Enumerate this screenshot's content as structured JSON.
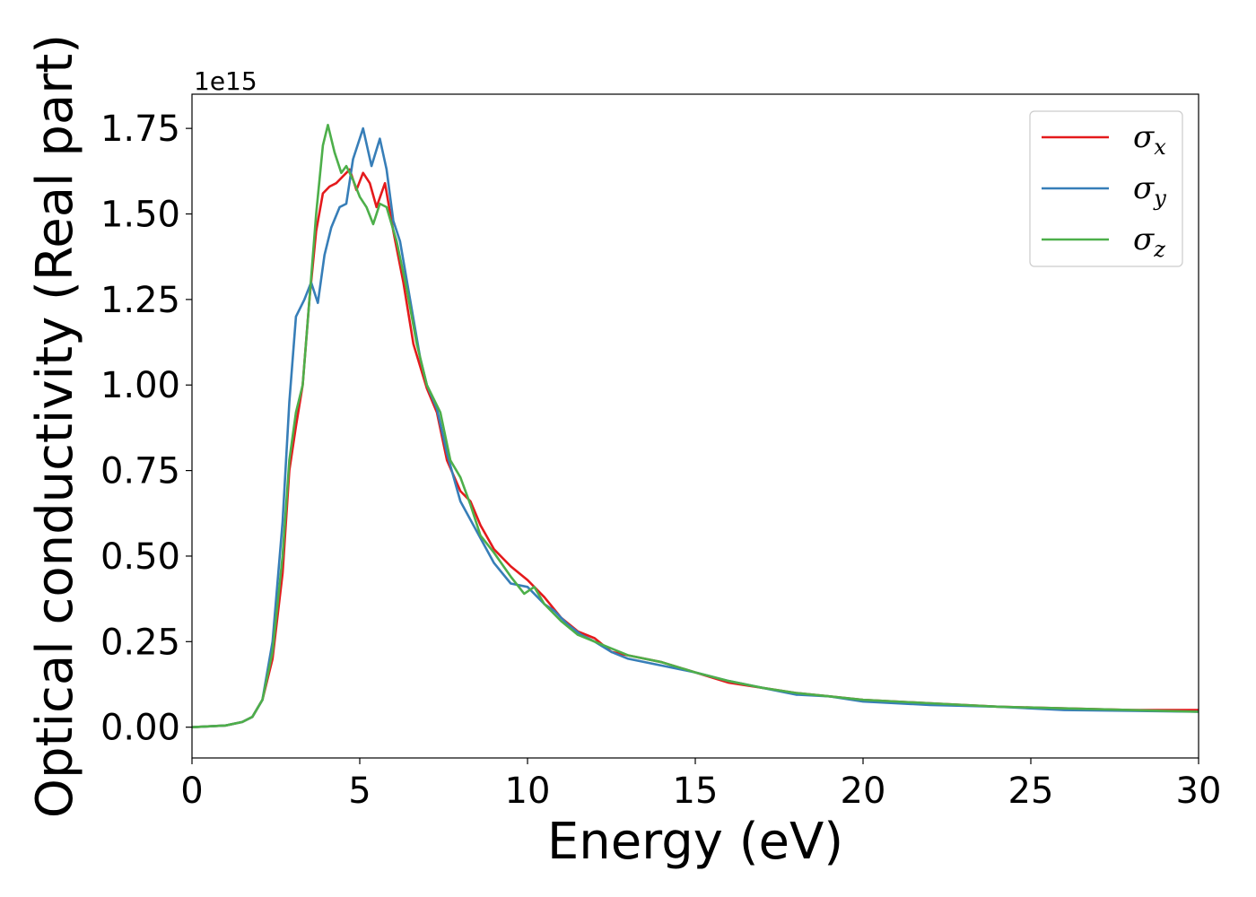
{
  "chart_data": {
    "type": "line",
    "title": "",
    "xlabel": "Energy (eV)",
    "ylabel": "Optical conductivity (Real part)",
    "y_offset_text": "1e15",
    "y_multiplier": 1000000000000000.0,
    "xlim": [
      0,
      30
    ],
    "ylim": [
      -0.09,
      1.85
    ],
    "x_ticks": [
      0,
      5,
      10,
      15,
      20,
      25,
      30
    ],
    "x_tick_labels": [
      "0",
      "5",
      "10",
      "15",
      "20",
      "25",
      "30"
    ],
    "y_ticks": [
      0.0,
      0.25,
      0.5,
      0.75,
      1.0,
      1.25,
      1.5,
      1.75
    ],
    "y_tick_labels": [
      "0.00",
      "0.25",
      "0.50",
      "0.75",
      "1.00",
      "1.25",
      "1.50",
      "1.75"
    ],
    "grid": false,
    "legend_position": "top-right",
    "series": [
      {
        "name": "σx",
        "legend_symbol": "σ",
        "legend_subscript": "x",
        "color": "#e41a1c",
        "points": [
          [
            0,
            0
          ],
          [
            1,
            0.005
          ],
          [
            1.5,
            0.015
          ],
          [
            1.8,
            0.03
          ],
          [
            2.1,
            0.08
          ],
          [
            2.4,
            0.2
          ],
          [
            2.7,
            0.45
          ],
          [
            2.9,
            0.75
          ],
          [
            3.1,
            0.88
          ],
          [
            3.3,
            1.0
          ],
          [
            3.5,
            1.25
          ],
          [
            3.7,
            1.45
          ],
          [
            3.9,
            1.56
          ],
          [
            4.1,
            1.58
          ],
          [
            4.3,
            1.59
          ],
          [
            4.5,
            1.61
          ],
          [
            4.7,
            1.63
          ],
          [
            4.9,
            1.57
          ],
          [
            5.1,
            1.62
          ],
          [
            5.3,
            1.59
          ],
          [
            5.5,
            1.52
          ],
          [
            5.75,
            1.59
          ],
          [
            6.0,
            1.45
          ],
          [
            6.3,
            1.3
          ],
          [
            6.6,
            1.12
          ],
          [
            7.0,
            0.99
          ],
          [
            7.3,
            0.92
          ],
          [
            7.6,
            0.78
          ],
          [
            8.0,
            0.69
          ],
          [
            8.3,
            0.66
          ],
          [
            8.6,
            0.59
          ],
          [
            9.0,
            0.52
          ],
          [
            9.5,
            0.47
          ],
          [
            10.0,
            0.43
          ],
          [
            10.5,
            0.38
          ],
          [
            11.0,
            0.32
          ],
          [
            11.5,
            0.28
          ],
          [
            12.0,
            0.26
          ],
          [
            12.5,
            0.22
          ],
          [
            13.0,
            0.21
          ],
          [
            14.0,
            0.19
          ],
          [
            15.0,
            0.16
          ],
          [
            16.0,
            0.13
          ],
          [
            17.0,
            0.115
          ],
          [
            18.0,
            0.1
          ],
          [
            19.0,
            0.09
          ],
          [
            20.0,
            0.08
          ],
          [
            22.0,
            0.07
          ],
          [
            24.0,
            0.06
          ],
          [
            26.0,
            0.055
          ],
          [
            28.0,
            0.05
          ],
          [
            30.0,
            0.05
          ]
        ]
      },
      {
        "name": "σy",
        "legend_symbol": "σ",
        "legend_subscript": "y",
        "color": "#377eb8",
        "points": [
          [
            0,
            0
          ],
          [
            1,
            0.005
          ],
          [
            1.5,
            0.015
          ],
          [
            1.8,
            0.03
          ],
          [
            2.1,
            0.08
          ],
          [
            2.4,
            0.25
          ],
          [
            2.7,
            0.6
          ],
          [
            2.9,
            0.95
          ],
          [
            3.1,
            1.2
          ],
          [
            3.35,
            1.25
          ],
          [
            3.55,
            1.3
          ],
          [
            3.75,
            1.24
          ],
          [
            3.95,
            1.38
          ],
          [
            4.15,
            1.46
          ],
          [
            4.4,
            1.52
          ],
          [
            4.6,
            1.53
          ],
          [
            4.8,
            1.66
          ],
          [
            5.1,
            1.75
          ],
          [
            5.35,
            1.64
          ],
          [
            5.6,
            1.72
          ],
          [
            5.8,
            1.63
          ],
          [
            6.0,
            1.48
          ],
          [
            6.2,
            1.42
          ],
          [
            6.5,
            1.25
          ],
          [
            6.8,
            1.08
          ],
          [
            7.0,
            1.0
          ],
          [
            7.3,
            0.93
          ],
          [
            7.6,
            0.8
          ],
          [
            8.0,
            0.66
          ],
          [
            8.5,
            0.57
          ],
          [
            9.0,
            0.48
          ],
          [
            9.5,
            0.42
          ],
          [
            10.0,
            0.41
          ],
          [
            10.5,
            0.36
          ],
          [
            10.8,
            0.34
          ],
          [
            11.2,
            0.3
          ],
          [
            11.6,
            0.27
          ],
          [
            12.0,
            0.25
          ],
          [
            12.5,
            0.22
          ],
          [
            13.0,
            0.2
          ],
          [
            14.0,
            0.18
          ],
          [
            15.0,
            0.16
          ],
          [
            16.0,
            0.135
          ],
          [
            17.0,
            0.115
          ],
          [
            18.0,
            0.095
          ],
          [
            19.0,
            0.09
          ],
          [
            20.0,
            0.075
          ],
          [
            22.0,
            0.065
          ],
          [
            24.0,
            0.06
          ],
          [
            26.0,
            0.05
          ],
          [
            28.0,
            0.048
          ],
          [
            30.0,
            0.045
          ]
        ]
      },
      {
        "name": "σz",
        "legend_symbol": "σ",
        "legend_subscript": "z",
        "color": "#4daf4a",
        "points": [
          [
            0,
            0
          ],
          [
            1,
            0.005
          ],
          [
            1.5,
            0.015
          ],
          [
            1.8,
            0.03
          ],
          [
            2.1,
            0.08
          ],
          [
            2.4,
            0.22
          ],
          [
            2.7,
            0.5
          ],
          [
            2.9,
            0.78
          ],
          [
            3.1,
            0.92
          ],
          [
            3.3,
            1.0
          ],
          [
            3.5,
            1.25
          ],
          [
            3.7,
            1.5
          ],
          [
            3.9,
            1.7
          ],
          [
            4.05,
            1.76
          ],
          [
            4.25,
            1.68
          ],
          [
            4.45,
            1.62
          ],
          [
            4.6,
            1.64
          ],
          [
            4.8,
            1.6
          ],
          [
            5.0,
            1.55
          ],
          [
            5.2,
            1.52
          ],
          [
            5.4,
            1.47
          ],
          [
            5.6,
            1.53
          ],
          [
            5.8,
            1.52
          ],
          [
            6.1,
            1.42
          ],
          [
            6.4,
            1.28
          ],
          [
            6.7,
            1.12
          ],
          [
            7.0,
            1.0
          ],
          [
            7.4,
            0.92
          ],
          [
            7.7,
            0.78
          ],
          [
            8.0,
            0.73
          ],
          [
            8.3,
            0.65
          ],
          [
            8.6,
            0.56
          ],
          [
            9.0,
            0.51
          ],
          [
            9.5,
            0.44
          ],
          [
            9.9,
            0.39
          ],
          [
            10.2,
            0.41
          ],
          [
            10.5,
            0.36
          ],
          [
            11.0,
            0.31
          ],
          [
            11.5,
            0.27
          ],
          [
            12.0,
            0.25
          ],
          [
            12.5,
            0.23
          ],
          [
            13.0,
            0.21
          ],
          [
            14.0,
            0.19
          ],
          [
            15.0,
            0.16
          ],
          [
            16.0,
            0.135
          ],
          [
            17.0,
            0.115
          ],
          [
            18.0,
            0.1
          ],
          [
            19.0,
            0.09
          ],
          [
            20.0,
            0.08
          ],
          [
            22.0,
            0.07
          ],
          [
            24.0,
            0.06
          ],
          [
            26.0,
            0.055
          ],
          [
            28.0,
            0.05
          ],
          [
            30.0,
            0.045
          ]
        ]
      }
    ]
  }
}
